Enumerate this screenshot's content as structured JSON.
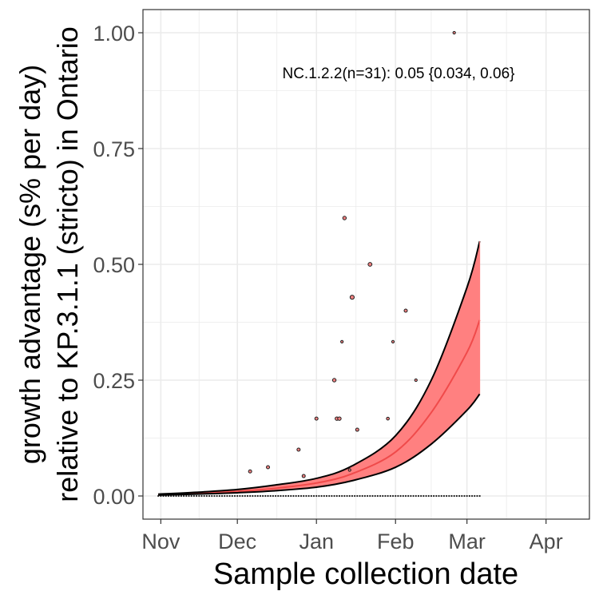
{
  "chart_data": {
    "type": "scatter",
    "title": "",
    "xlabel": "Sample collection date",
    "ylabel_lines": [
      "growth advantage (s% per day)",
      "relative to KP.3.1.1 (stricto) in Ontario"
    ],
    "x_ticks": [
      {
        "date": "2024-11-01",
        "label": "Nov"
      },
      {
        "date": "2024-12-01",
        "label": "Dec"
      },
      {
        "date": "2025-01-01",
        "label": "Jan"
      },
      {
        "date": "2025-02-01",
        "label": "Feb"
      },
      {
        "date": "2025-03-01",
        "label": "Mar"
      },
      {
        "date": "2025-04-01",
        "label": "Apr"
      }
    ],
    "x_range": [
      "2024-10-25",
      "2025-04-18"
    ],
    "y_ticks": [
      {
        "value": 0.0,
        "label": "0.00"
      },
      {
        "value": 0.25,
        "label": "0.25"
      },
      {
        "value": 0.5,
        "label": "0.50"
      },
      {
        "value": 0.75,
        "label": "0.75"
      },
      {
        "value": 1.0,
        "label": "1.00"
      }
    ],
    "ylim": [
      -0.05,
      1.05
    ],
    "grid": true,
    "annotation": "NC.1.2.2(n=31): 0.05 {0.034, 0.06}",
    "colors": {
      "ribbon": "#ff8080",
      "fit_line": "#f04a4a",
      "bounds": "#000000",
      "points": "#1f1f1f",
      "point_fill": "#f08080",
      "grid": "#ebebeb",
      "panel_border": "#333333"
    },
    "fit": [
      {
        "date": "2024-10-31",
        "lower": 0.002,
        "mid": 0.003,
        "upper": 0.004
      },
      {
        "date": "2024-11-15",
        "lower": 0.004,
        "mid": 0.006,
        "upper": 0.008
      },
      {
        "date": "2024-12-01",
        "lower": 0.007,
        "mid": 0.01,
        "upper": 0.014
      },
      {
        "date": "2024-12-15",
        "lower": 0.011,
        "mid": 0.016,
        "upper": 0.023
      },
      {
        "date": "2025-01-01",
        "lower": 0.019,
        "mid": 0.028,
        "upper": 0.038
      },
      {
        "date": "2025-01-15",
        "lower": 0.033,
        "mid": 0.048,
        "upper": 0.065
      },
      {
        "date": "2025-02-01",
        "lower": 0.062,
        "mid": 0.095,
        "upper": 0.13
      },
      {
        "date": "2025-02-15",
        "lower": 0.112,
        "mid": 0.18,
        "upper": 0.25
      },
      {
        "date": "2025-03-01",
        "lower": 0.185,
        "mid": 0.31,
        "upper": 0.45
      },
      {
        "date": "2025-03-06",
        "lower": 0.22,
        "mid": 0.38,
        "upper": 0.55
      }
    ],
    "points": [
      {
        "date": "2024-12-06",
        "y": 0.053,
        "size": 2
      },
      {
        "date": "2024-12-13",
        "y": 0.062,
        "size": 2
      },
      {
        "date": "2024-12-25",
        "y": 0.1,
        "size": 2
      },
      {
        "date": "2024-12-27",
        "y": 0.043,
        "size": 2
      },
      {
        "date": "2025-01-01",
        "y": 0.167,
        "size": 2
      },
      {
        "date": "2025-01-08",
        "y": 0.25,
        "size": 2.2
      },
      {
        "date": "2025-01-09",
        "y": 0.167,
        "size": 2.2
      },
      {
        "date": "2025-01-10",
        "y": 0.167,
        "size": 2.2
      },
      {
        "date": "2025-01-11",
        "y": 0.333,
        "size": 1.6
      },
      {
        "date": "2025-01-12",
        "y": 0.6,
        "size": 2.2
      },
      {
        "date": "2025-01-14",
        "y": 0.056,
        "size": 1.6
      },
      {
        "date": "2025-01-15",
        "y": 0.429,
        "size": 2.6
      },
      {
        "date": "2025-01-17",
        "y": 0.143,
        "size": 2
      },
      {
        "date": "2025-01-22",
        "y": 0.5,
        "size": 2.4
      },
      {
        "date": "2025-01-29",
        "y": 0.167,
        "size": 1.8
      },
      {
        "date": "2025-01-31",
        "y": 0.333,
        "size": 1.6
      },
      {
        "date": "2025-02-05",
        "y": 0.4,
        "size": 2
      },
      {
        "date": "2025-02-09",
        "y": 0.25,
        "size": 1.6
      },
      {
        "date": "2025-02-24",
        "y": 1.0,
        "size": 1.6
      }
    ],
    "zero_points_start": "2024-10-31",
    "zero_points_end": "2025-03-06"
  }
}
